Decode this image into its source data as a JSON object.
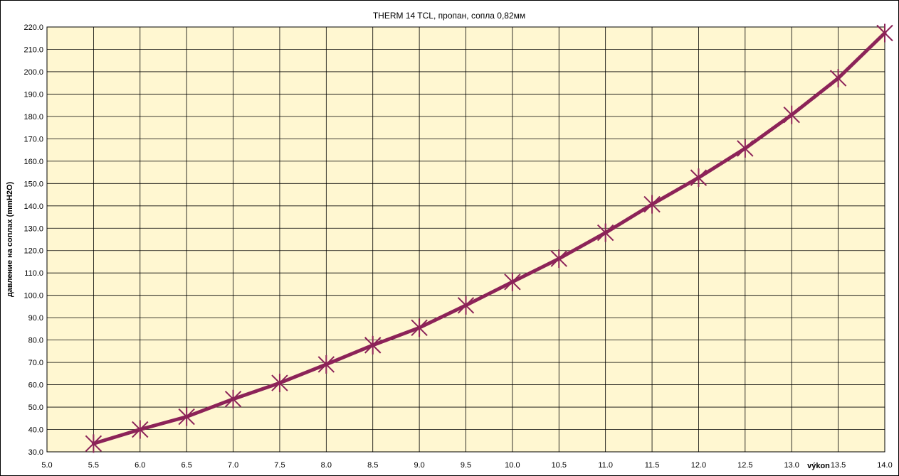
{
  "chart_data": {
    "type": "line",
    "title": "THERM 14 TCL, пропан, сопла 0,82мм",
    "xlabel": "výkon",
    "ylabel": "давление на соплах (mmH2O)",
    "xlim": [
      5.0,
      14.0
    ],
    "ylim": [
      30.0,
      220.0
    ],
    "x_ticks": [
      "5.0",
      "5.5",
      "6.0",
      "6.5",
      "7.0",
      "7.5",
      "8.0",
      "8.5",
      "9.0",
      "9.5",
      "10.0",
      "10.5",
      "11.0",
      "11.5",
      "12.0",
      "12.5",
      "13.0",
      "13.5",
      "14.0"
    ],
    "y_ticks": [
      "30.0",
      "40.0",
      "50.0",
      "60.0",
      "70.0",
      "80.0",
      "90.0",
      "100.0",
      "110.0",
      "120.0",
      "130.0",
      "140.0",
      "150.0",
      "160.0",
      "170.0",
      "180.0",
      "190.0",
      "200.0",
      "210.0",
      "220.0"
    ],
    "grid": true,
    "series": [
      {
        "x": [
          5.5,
          6.0,
          6.5,
          7.0,
          7.5,
          8.0,
          8.5,
          9.0,
          9.5,
          10.0,
          10.5,
          11.0,
          11.5,
          12.0,
          12.5,
          13.0,
          13.5,
          14.0
        ],
        "y": [
          33.7,
          40.0,
          45.7,
          53.6,
          60.8,
          69.1,
          77.7,
          85.5,
          95.5,
          106.0,
          116.4,
          128.0,
          140.7,
          152.6,
          165.7,
          180.7,
          197.1,
          217.3
        ],
        "color": "#8c2358",
        "marker": "x-star"
      }
    ],
    "colors": {
      "plot_background": "#fff7d1",
      "grid": "#000000",
      "line": "#8c2358"
    }
  }
}
